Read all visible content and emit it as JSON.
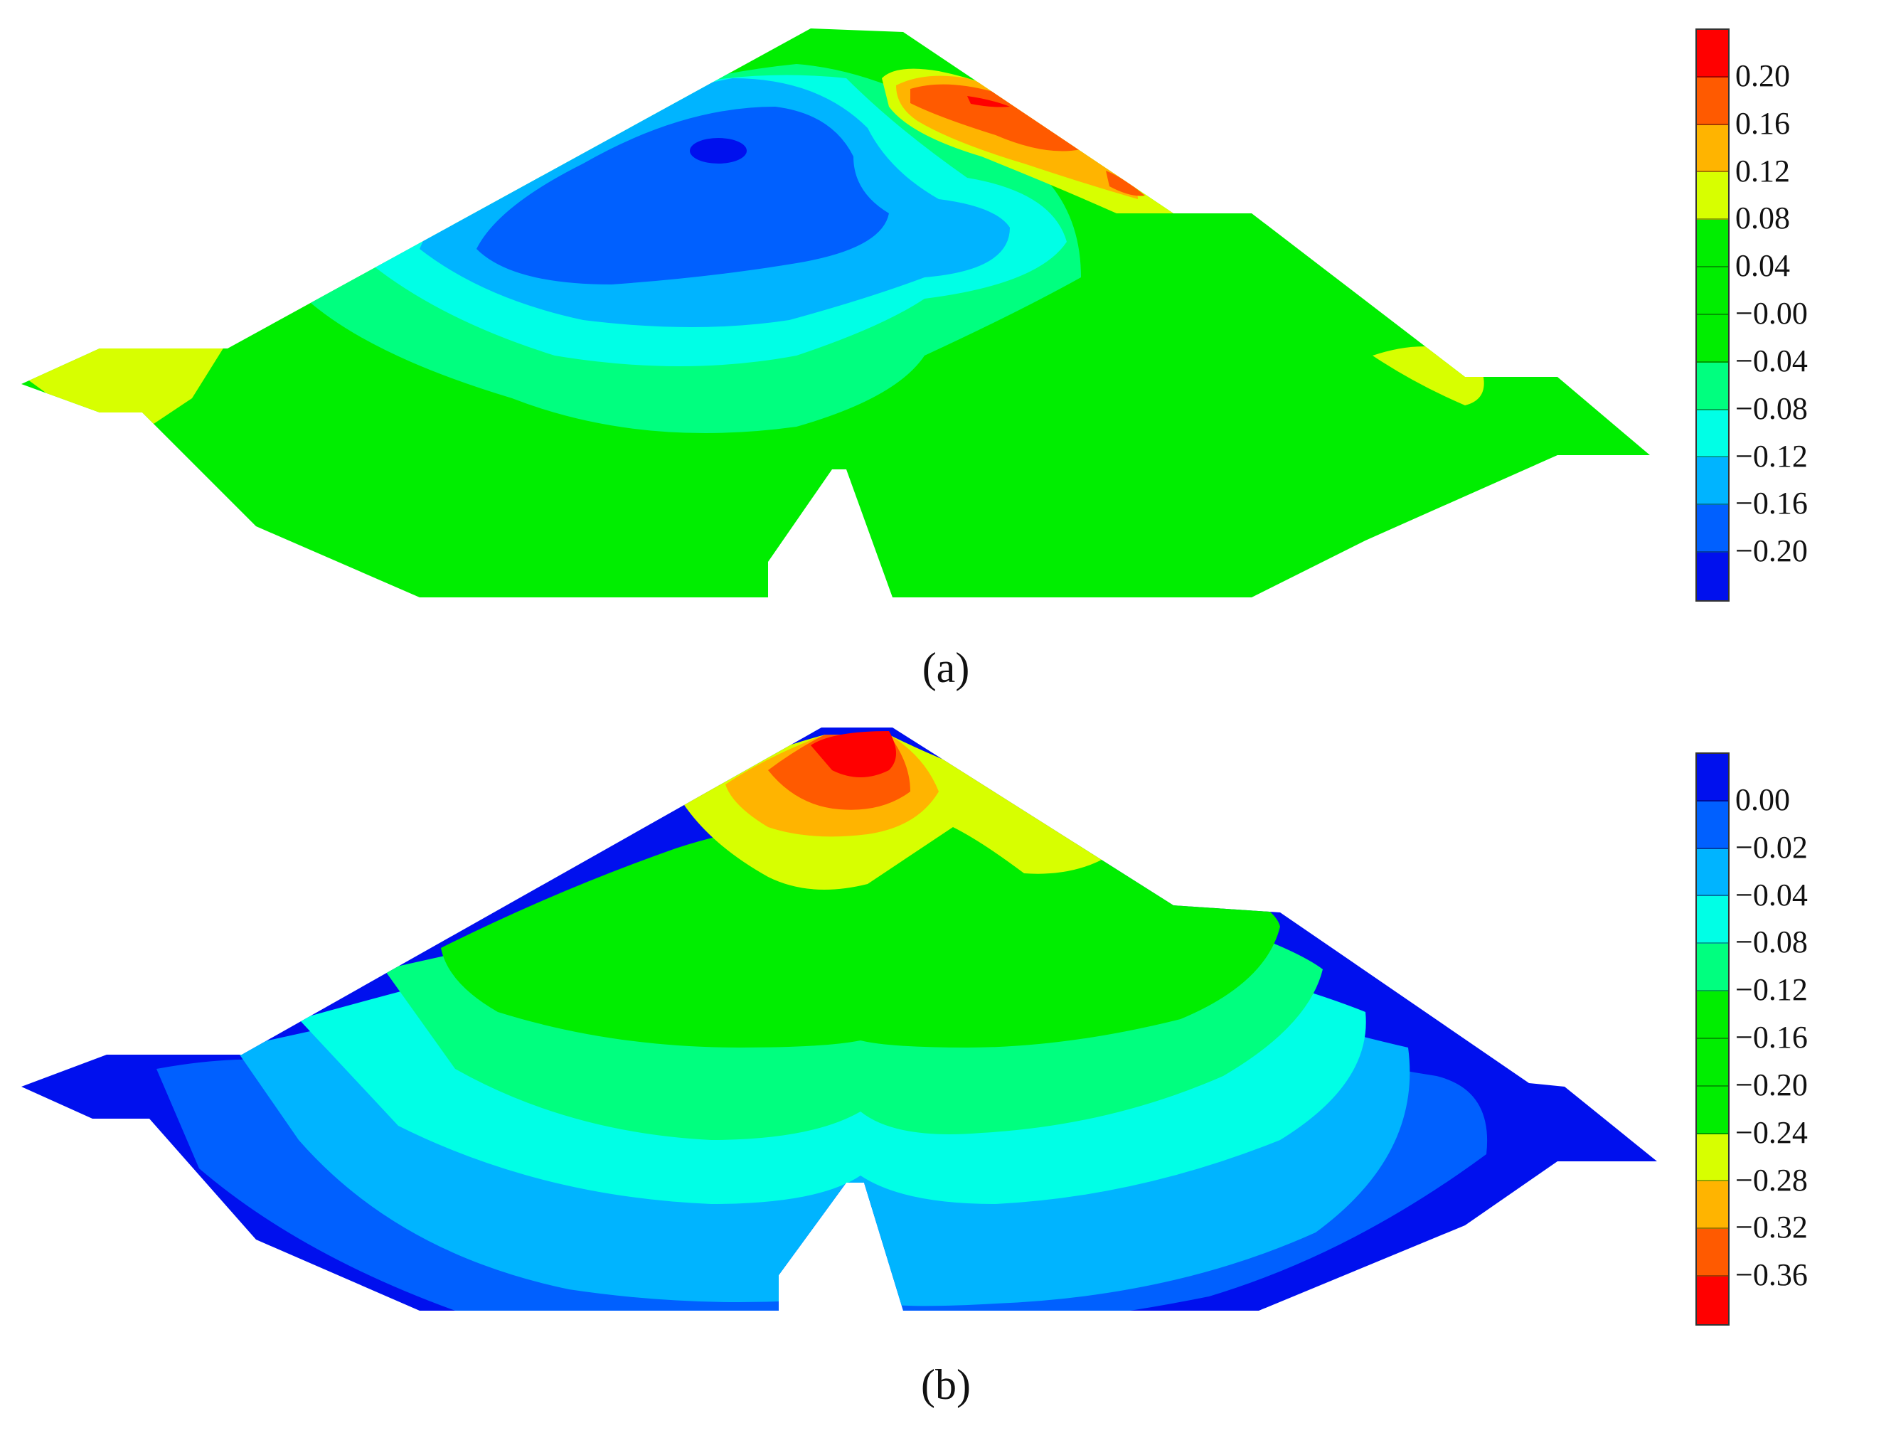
{
  "chart_data": [
    {
      "type": "heatmap",
      "panel_label": "(a)",
      "legend": {
        "placement": "right",
        "tick_labels": [
          "0.20",
          "0.16",
          "0.12",
          "0.08",
          "0.04",
          "−0.00",
          "−0.04",
          "−0.08",
          "−0.12",
          "−0.16",
          "−0.20"
        ],
        "bands": [
          {
            "color": "#ff0000"
          },
          {
            "color": "#ff5a00"
          },
          {
            "color": "#ffb400"
          },
          {
            "color": "#d7ff00"
          },
          {
            "color": "#00ee00"
          },
          {
            "color": "#00ee00"
          },
          {
            "color": "#00ee00"
          },
          {
            "color": "#00ff7f"
          },
          {
            "color": "#00ffe6"
          },
          {
            "color": "#00b4ff"
          },
          {
            "color": "#0060ff"
          },
          {
            "color": "#0010ee"
          }
        ]
      }
    },
    {
      "type": "heatmap",
      "panel_label": "(b)",
      "legend": {
        "placement": "right",
        "tick_labels": [
          "0.00",
          "−0.02",
          "−0.04",
          "−0.08",
          "−0.12",
          "−0.16",
          "−0.20",
          "−0.24",
          "−0.28",
          "−0.32",
          "−0.36"
        ],
        "bands": [
          {
            "color": "#0010ee"
          },
          {
            "color": "#0060ff"
          },
          {
            "color": "#00b4ff"
          },
          {
            "color": "#00ffe6"
          },
          {
            "color": "#00ff7f"
          },
          {
            "color": "#00ee00"
          },
          {
            "color": "#00ee00"
          },
          {
            "color": "#00ee00"
          },
          {
            "color": "#d7ff00"
          },
          {
            "color": "#ffb400"
          },
          {
            "color": "#ff5a00"
          },
          {
            "color": "#ff0000"
          }
        ]
      }
    }
  ]
}
